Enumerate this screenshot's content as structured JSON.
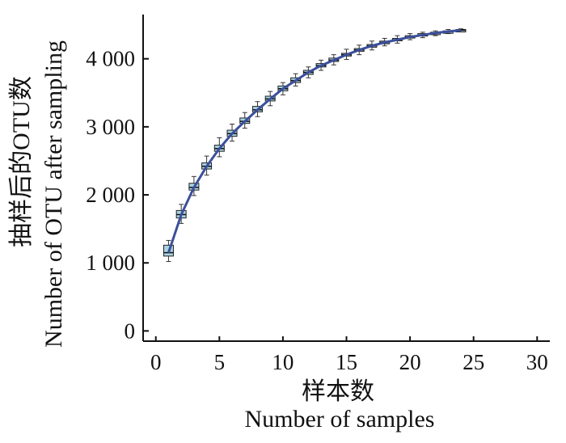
{
  "chart_data": {
    "type": "box",
    "title": "",
    "xlabel": "样本数",
    "xlabel_en": "Number of samples",
    "ylabel": "抽样后的OTU数",
    "ylabel_en": "Number of OTU after sampling",
    "xlim": [
      -1,
      31
    ],
    "ylim": [
      -150,
      4650
    ],
    "x_ticks": [
      0,
      5,
      10,
      15,
      20,
      25,
      30
    ],
    "x_tick_labels": [
      "0",
      "5",
      "10",
      "15",
      "20",
      "25",
      "30"
    ],
    "y_ticks": [
      0,
      1000,
      2000,
      3000,
      4000
    ],
    "y_tick_labels": [
      "0",
      "1 000",
      "2 000",
      "3 000",
      "4 000"
    ],
    "grid": false,
    "line_color": "#3b4f9c",
    "box_fill": "#a9d3e0",
    "series": [
      {
        "x": [
          1,
          2,
          3,
          4,
          5,
          6,
          7,
          8,
          9,
          10,
          11,
          12,
          13,
          14,
          15,
          16,
          17,
          18,
          19,
          20,
          21,
          22,
          23,
          24
        ],
        "median": [
          1150,
          1710,
          2110,
          2420,
          2680,
          2900,
          3080,
          3250,
          3410,
          3560,
          3680,
          3800,
          3900,
          3980,
          4060,
          4130,
          4190,
          4240,
          4280,
          4320,
          4350,
          4380,
          4400,
          4420
        ],
        "q1": [
          1100,
          1660,
          2070,
          2380,
          2640,
          2860,
          3050,
          3220,
          3380,
          3530,
          3650,
          3770,
          3880,
          3960,
          4040,
          4110,
          4170,
          4220,
          4270,
          4310,
          4340,
          4370,
          4390,
          4410
        ],
        "q3": [
          1260,
          1770,
          2170,
          2470,
          2730,
          2950,
          3130,
          3300,
          3450,
          3600,
          3720,
          3830,
          3930,
          4010,
          4080,
          4150,
          4210,
          4260,
          4300,
          4340,
          4370,
          4390,
          4410,
          4430
        ],
        "whisker_low": [
          1020,
          1580,
          1990,
          2290,
          2560,
          2790,
          2980,
          3150,
          3310,
          3470,
          3600,
          3720,
          3830,
          3910,
          3990,
          4060,
          4130,
          4190,
          4230,
          4280,
          4310,
          4340,
          4370,
          4400
        ],
        "whisker_high": [
          1330,
          1860,
          2270,
          2570,
          2840,
          3040,
          3210,
          3370,
          3520,
          3650,
          3780,
          3880,
          3980,
          4060,
          4140,
          4200,
          4260,
          4300,
          4340,
          4370,
          4390,
          4410,
          4430,
          4440
        ]
      }
    ]
  }
}
